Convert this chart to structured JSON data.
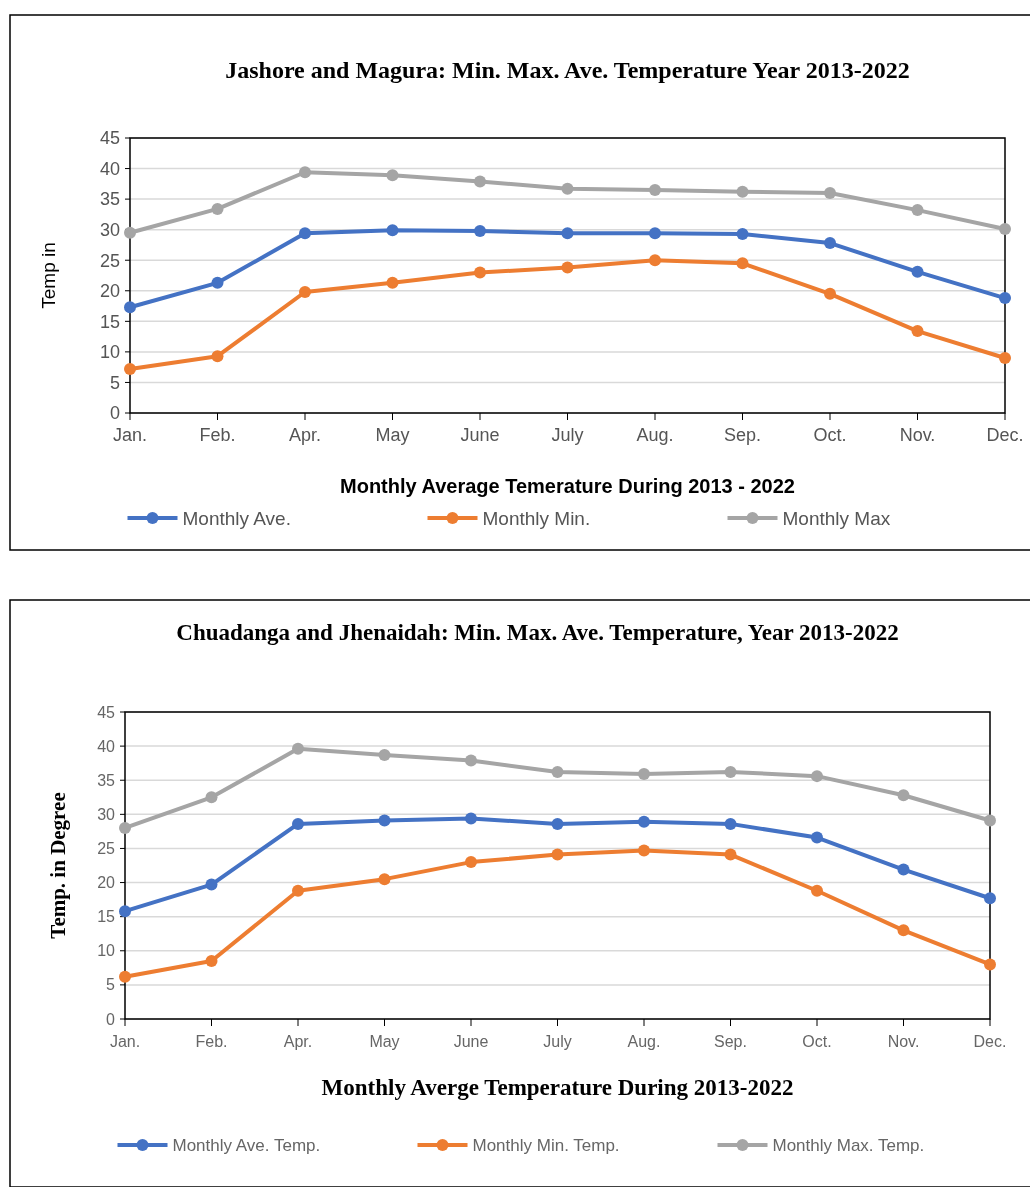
{
  "chart_data": [
    {
      "type": "line",
      "title": "Jashore and Magura: Min. Max. Ave. Temperature Year 2013-2022",
      "xlabel": "Monthly Average Temerature During 2013 - 2022",
      "ylabel": "Temp in",
      "categories": [
        "Jan.",
        "Feb.",
        "Apr.",
        "May",
        "June",
        "July",
        "Aug.",
        "Sep.",
        "Oct.",
        "Nov.",
        "Dec."
      ],
      "series": [
        {
          "name": "Monthly Ave.",
          "color": "#4472c4",
          "values": [
            17.3,
            21.3,
            29.4,
            29.9,
            29.8,
            29.4,
            29.4,
            29.3,
            27.8,
            23.1,
            18.8
          ]
        },
        {
          "name": "Monthly Min.",
          "color": "#ed7d31",
          "values": [
            7.2,
            9.3,
            19.8,
            21.3,
            23,
            23.8,
            25,
            24.5,
            19.5,
            13.4,
            9
          ]
        },
        {
          "name": "Monthly Max",
          "color": "#a5a5a5",
          "values": [
            29.5,
            33.4,
            39.4,
            38.9,
            37.9,
            36.7,
            36.5,
            36.2,
            36,
            33.2,
            30.1
          ]
        }
      ],
      "ylim": [
        0,
        45
      ],
      "yticks": [
        0,
        5,
        10,
        15,
        20,
        25,
        30,
        35,
        40,
        45
      ],
      "grid": "y",
      "legend": "bottom",
      "marker": "circle"
    },
    {
      "type": "line",
      "title": "Chuadanga and Jhenaidah: Min. Max. Ave. Temperature, Year 2013-2022",
      "xlabel": "Monthly Averge Temperature During 2013-2022",
      "ylabel": "Temp. in Degree",
      "categories": [
        "Jan.",
        "Feb.",
        "Apr.",
        "May",
        "June",
        "July",
        "Aug.",
        "Sep.",
        "Oct.",
        "Nov.",
        "Dec."
      ],
      "series": [
        {
          "name": "Monthly Ave. Temp.",
          "color": "#4472c4",
          "values": [
            15.8,
            19.7,
            28.6,
            29.1,
            29.4,
            28.6,
            28.9,
            28.6,
            26.6,
            21.9,
            17.7
          ]
        },
        {
          "name": "Monthly Min. Temp.",
          "color": "#ed7d31",
          "values": [
            6.2,
            8.5,
            18.8,
            20.5,
            23,
            24.1,
            24.7,
            24.1,
            18.8,
            13,
            8
          ]
        },
        {
          "name": "Monthly Max. Temp.",
          "color": "#a5a5a5",
          "values": [
            28,
            32.5,
            39.6,
            38.7,
            37.9,
            36.2,
            35.9,
            36.2,
            35.6,
            32.8,
            29.1
          ]
        }
      ],
      "ylim": [
        0,
        45
      ],
      "yticks": [
        0,
        5,
        10,
        15,
        20,
        25,
        30,
        35,
        40,
        45
      ],
      "grid": "y",
      "legend": "bottom",
      "marker": "circle"
    }
  ]
}
